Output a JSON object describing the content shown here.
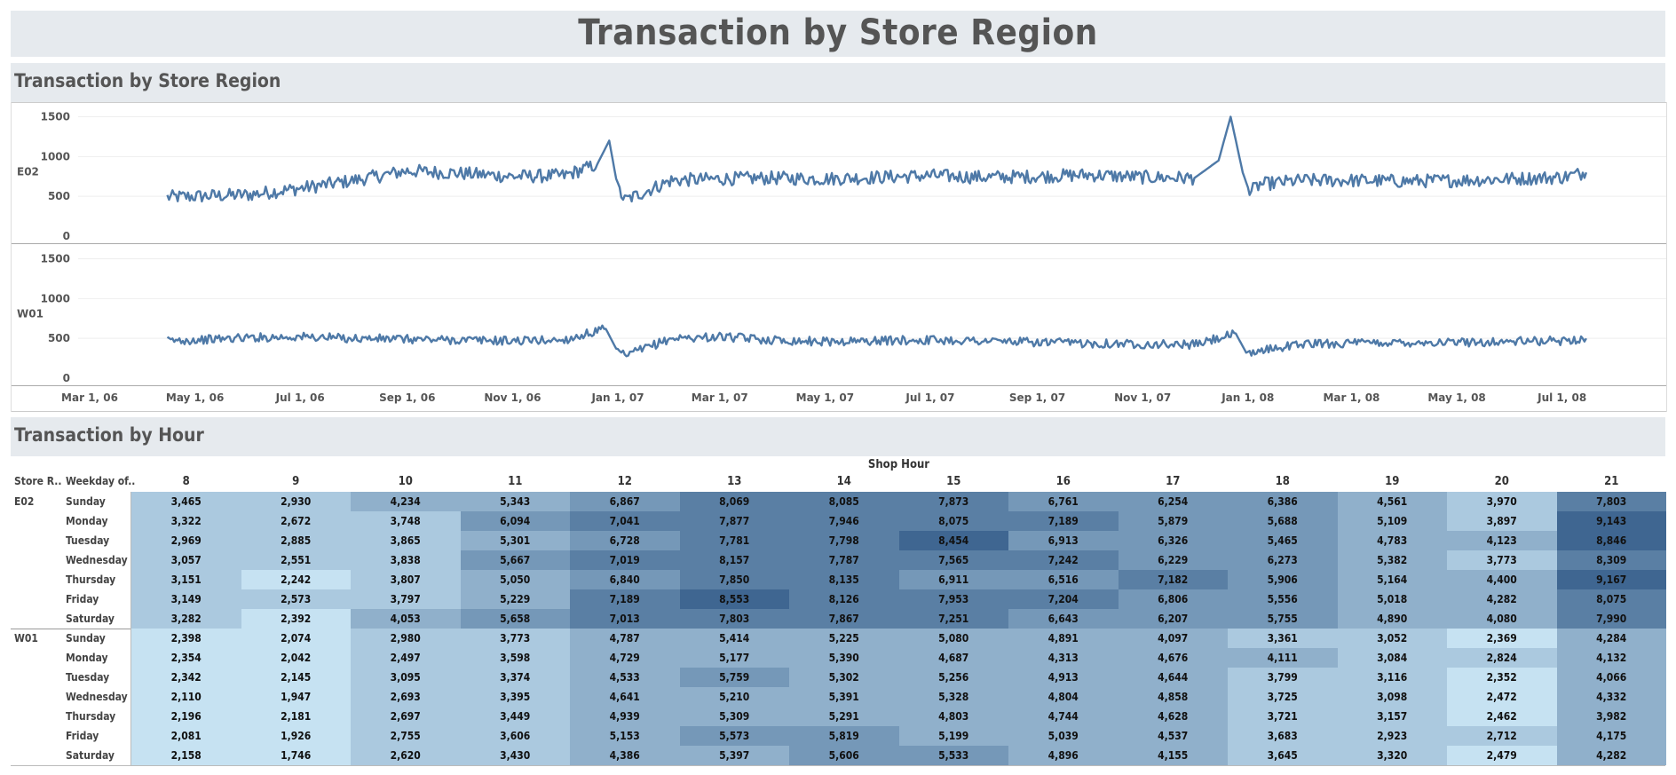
{
  "dashboard": {
    "title": "Transaction by Store Region"
  },
  "section_line": {
    "title": "Transaction by Store Region"
  },
  "section_table": {
    "title": "Transaction by Hour"
  },
  "colors": {
    "line": "#4e79a7",
    "band": "#e6eaee",
    "heat_low": "#c6e2f2",
    "heat_high": "#3f6691"
  },
  "chart_data": [
    {
      "type": "line",
      "title": "Transaction by Store Region",
      "x_tick_labels": [
        "Mar 1, 06",
        "May 1, 06",
        "Jul 1, 06",
        "Sep 1, 06",
        "Nov 1, 06",
        "Jan 1, 07",
        "Mar 1, 07",
        "May 1, 07",
        "Jul 1, 07",
        "Sep 1, 07",
        "Nov 1, 07",
        "Jan 1, 08",
        "Mar 1, 08",
        "May 1, 08",
        "Jul 1, 08"
      ],
      "xlim": [
        "2006-03-01",
        "2008-07-31"
      ],
      "y_ticks": [
        0,
        500,
        1000,
        1500
      ],
      "ylim": [
        0,
        1550
      ],
      "series": [
        {
          "name": "E02",
          "x": [
            "2006-04-15",
            "2006-05-01",
            "2006-06-01",
            "2006-07-01",
            "2006-08-01",
            "2006-09-01",
            "2006-10-01",
            "2006-11-01",
            "2006-12-01",
            "2006-12-20",
            "2006-12-27",
            "2007-01-01",
            "2007-01-05",
            "2007-02-01",
            "2007-03-01",
            "2007-04-01",
            "2007-05-01",
            "2007-06-01",
            "2007-07-01",
            "2007-08-01",
            "2007-09-01",
            "2007-10-01",
            "2007-11-01",
            "2007-12-01",
            "2007-12-15",
            "2007-12-22",
            "2007-12-29",
            "2008-01-02",
            "2008-01-08",
            "2008-02-01",
            "2008-03-01",
            "2008-04-01",
            "2008-05-01",
            "2008-06-01",
            "2008-07-01",
            "2008-07-15"
          ],
          "values": [
            490,
            500,
            520,
            600,
            700,
            820,
            790,
            750,
            760,
            900,
            1200,
            600,
            450,
            700,
            720,
            730,
            720,
            740,
            760,
            740,
            750,
            770,
            740,
            730,
            950,
            1500,
            800,
            550,
            650,
            700,
            700,
            690,
            700,
            720,
            740,
            800
          ]
        },
        {
          "name": "W01",
          "x": [
            "2006-04-15",
            "2006-05-01",
            "2006-06-01",
            "2006-07-01",
            "2006-08-01",
            "2006-09-01",
            "2006-10-01",
            "2006-11-01",
            "2006-12-01",
            "2006-12-25",
            "2007-01-01",
            "2007-01-05",
            "2007-02-01",
            "2007-03-01",
            "2007-04-01",
            "2007-05-01",
            "2007-06-01",
            "2007-07-01",
            "2007-08-01",
            "2007-09-01",
            "2007-10-01",
            "2007-11-01",
            "2007-12-01",
            "2007-12-25",
            "2008-01-01",
            "2008-01-08",
            "2008-02-01",
            "2008-03-01",
            "2008-04-01",
            "2008-05-01",
            "2008-06-01",
            "2008-07-01",
            "2008-07-15"
          ],
          "values": [
            470,
            480,
            510,
            520,
            500,
            490,
            480,
            470,
            480,
            620,
            330,
            280,
            500,
            520,
            480,
            460,
            470,
            480,
            470,
            450,
            440,
            430,
            420,
            560,
            280,
            350,
            430,
            440,
            450,
            450,
            460,
            470,
            500
          ]
        }
      ]
    },
    {
      "type": "heatmap",
      "title": "Transaction by Hour",
      "column_group_label": "Shop Hour",
      "row_header_labels": [
        "Store R..",
        "Weekday of.."
      ],
      "columns": [
        "8",
        "9",
        "10",
        "11",
        "12",
        "13",
        "14",
        "15",
        "16",
        "17",
        "18",
        "19",
        "20",
        "21"
      ],
      "groups": [
        {
          "name": "E02",
          "rows": [
            {
              "label": "Sunday",
              "values": [
                "3,465",
                "2,930",
                "4,234",
                "5,343",
                "6,867",
                "8,069",
                "8,085",
                "7,873",
                "6,761",
                "6,254",
                "6,386",
                "4,561",
                "3,970",
                "7,803"
              ]
            },
            {
              "label": "Monday",
              "values": [
                "3,322",
                "2,672",
                "3,748",
                "6,094",
                "7,041",
                "7,877",
                "7,946",
                "8,075",
                "7,189",
                "5,879",
                "5,688",
                "5,109",
                "3,897",
                "9,143"
              ]
            },
            {
              "label": "Tuesday",
              "values": [
                "2,969",
                "2,885",
                "3,865",
                "5,301",
                "6,728",
                "7,781",
                "7,798",
                "8,454",
                "6,913",
                "6,326",
                "5,465",
                "4,783",
                "4,123",
                "8,846"
              ]
            },
            {
              "label": "Wednesday",
              "values": [
                "3,057",
                "2,551",
                "3,838",
                "5,667",
                "7,019",
                "8,157",
                "7,787",
                "7,565",
                "7,242",
                "6,229",
                "6,273",
                "5,382",
                "3,773",
                "8,309"
              ]
            },
            {
              "label": "Thursday",
              "values": [
                "3,151",
                "2,242",
                "3,807",
                "5,050",
                "6,840",
                "7,850",
                "8,135",
                "6,911",
                "6,516",
                "7,182",
                "5,906",
                "5,164",
                "4,400",
                "9,167"
              ]
            },
            {
              "label": "Friday",
              "values": [
                "3,149",
                "2,573",
                "3,797",
                "5,229",
                "7,189",
                "8,553",
                "8,126",
                "7,953",
                "7,204",
                "6,806",
                "5,556",
                "5,018",
                "4,282",
                "8,075"
              ]
            },
            {
              "label": "Saturday",
              "values": [
                "3,282",
                "2,392",
                "4,053",
                "5,658",
                "7,013",
                "7,803",
                "7,867",
                "7,251",
                "6,643",
                "6,207",
                "5,755",
                "4,890",
                "4,080",
                "7,990"
              ]
            }
          ]
        },
        {
          "name": "W01",
          "rows": [
            {
              "label": "Sunday",
              "values": [
                "2,398",
                "2,074",
                "2,980",
                "3,773",
                "4,787",
                "5,414",
                "5,225",
                "5,080",
                "4,891",
                "4,097",
                "3,361",
                "3,052",
                "2,369",
                "4,284"
              ]
            },
            {
              "label": "Monday",
              "values": [
                "2,354",
                "2,042",
                "2,497",
                "3,598",
                "4,729",
                "5,177",
                "5,390",
                "4,687",
                "4,313",
                "4,676",
                "4,111",
                "3,084",
                "2,824",
                "4,132"
              ]
            },
            {
              "label": "Tuesday",
              "values": [
                "2,342",
                "2,145",
                "3,095",
                "3,374",
                "4,533",
                "5,759",
                "5,302",
                "5,256",
                "4,913",
                "4,644",
                "3,799",
                "3,116",
                "2,352",
                "4,066"
              ]
            },
            {
              "label": "Wednesday",
              "values": [
                "2,110",
                "1,947",
                "2,693",
                "3,395",
                "4,641",
                "5,210",
                "5,391",
                "5,328",
                "4,804",
                "4,858",
                "3,725",
                "3,098",
                "2,472",
                "4,332"
              ]
            },
            {
              "label": "Thursday",
              "values": [
                "2,196",
                "2,181",
                "2,697",
                "3,449",
                "4,939",
                "5,309",
                "5,291",
                "4,803",
                "4,744",
                "4,628",
                "3,721",
                "3,157",
                "2,462",
                "3,982"
              ]
            },
            {
              "label": "Friday",
              "values": [
                "2,081",
                "1,926",
                "2,755",
                "3,606",
                "5,153",
                "5,573",
                "5,819",
                "5,199",
                "5,039",
                "4,537",
                "3,683",
                "2,923",
                "2,712",
                "4,175"
              ]
            },
            {
              "label": "Saturday",
              "values": [
                "2,158",
                "1,746",
                "2,620",
                "3,430",
                "4,386",
                "5,397",
                "5,606",
                "5,533",
                "4,896",
                "4,155",
                "3,645",
                "3,320",
                "2,479",
                "4,282"
              ]
            }
          ]
        }
      ]
    }
  ]
}
